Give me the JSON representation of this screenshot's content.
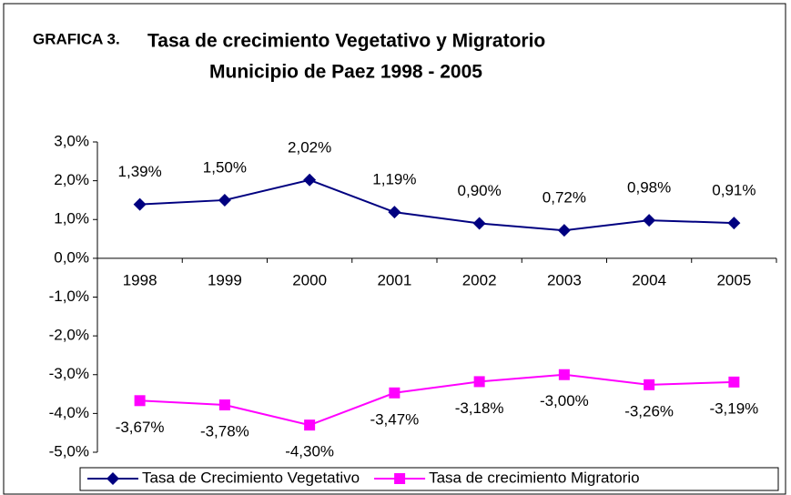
{
  "chart_data": {
    "type": "line",
    "label": "GRAFICA 3.",
    "title": [
      "Tasa de crecimiento Vegetativo y Migratorio",
      "Municipio de Paez 1998 - 2005"
    ],
    "categories": [
      "1998",
      "1999",
      "2000",
      "2001",
      "2002",
      "2003",
      "2004",
      "2005"
    ],
    "series": [
      {
        "name": "Tasa de Crecimiento Vegetativo",
        "color": "#000080",
        "marker": "diamond",
        "label_position": "above",
        "values": [
          1.39,
          1.5,
          2.02,
          1.19,
          0.9,
          0.72,
          0.98,
          0.91
        ],
        "value_labels": [
          "1,39%",
          "1,50%",
          "2,02%",
          "1,19%",
          "0,90%",
          "0,72%",
          "0,98%",
          "0,91%"
        ]
      },
      {
        "name": "Tasa de crecimiento Migratorio",
        "color": "#FF00FF",
        "marker": "square",
        "label_position": "below",
        "values": [
          -3.67,
          -3.78,
          -4.3,
          -3.47,
          -3.18,
          -3.0,
          -3.26,
          -3.19
        ],
        "value_labels": [
          "-3,67%",
          "-3,78%",
          "-4,30%",
          "-3,47%",
          "-3,18%",
          "-3,00%",
          "-3,26%",
          "-3,19%"
        ]
      }
    ],
    "ylim": [
      -5,
      3
    ],
    "yticks": [
      {
        "value": 3,
        "label": "3,0%"
      },
      {
        "value": 2,
        "label": "2,0%"
      },
      {
        "value": 1,
        "label": "1,0%"
      },
      {
        "value": 0,
        "label": "0,0%"
      },
      {
        "value": -1,
        "label": "-1,0%"
      },
      {
        "value": -2,
        "label": "-2,0%"
      },
      {
        "value": -3,
        "label": "-3,0%"
      },
      {
        "value": -4,
        "label": "-4,0%"
      },
      {
        "value": -5,
        "label": "-5,0%"
      }
    ],
    "legend": "bottom"
  }
}
